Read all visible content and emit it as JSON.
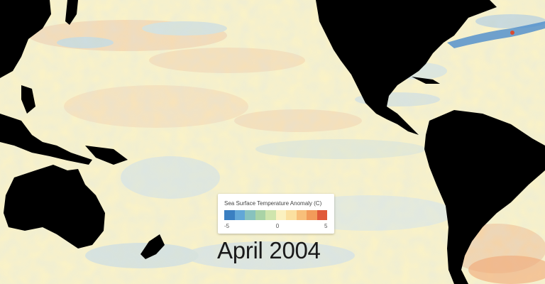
{
  "map": {
    "title": "",
    "ocean_base_color": "#fdf3c4",
    "land_color": "#000000"
  },
  "legend": {
    "title": "Sea Surface Temperature Anomaly (C)",
    "min_label": "-5",
    "mid_label": "0",
    "max_label": "5",
    "colors": [
      "#3a7fc1",
      "#62a7d7",
      "#88c2be",
      "#a9d3a6",
      "#cfe5ad",
      "#fbf1c0",
      "#fbe0a0",
      "#f8bf7a",
      "#f29b5a",
      "#e05a3a"
    ]
  },
  "date_label": "April 2004"
}
